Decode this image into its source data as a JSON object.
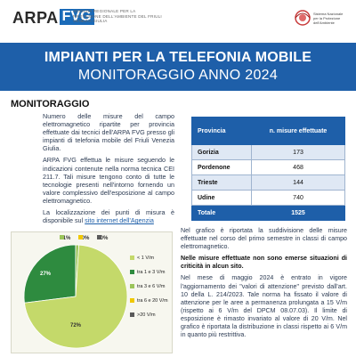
{
  "header": {
    "logo_arpa": "ARPA",
    "logo_fvg": "FVG",
    "logo_subtitle": "Agenzia regionale per la protezione dell'ambiente del Friuli Venezia Giulia",
    "partner_logo_text": "Sistema Nazionale per la Protezione dell'Ambiente"
  },
  "banner": {
    "title": "IMPIANTI PER LA TELEFONIA MOBILE",
    "subtitle": "MONITORAGGIO ANNO 2024"
  },
  "section": {
    "title": "MONITORAGGIO"
  },
  "intro": {
    "p1": "Numero delle misure del campo elettromagnetico ripartite per provincia effettuate dai tecnici dell'ARPA FVG presso gli impianti di telefonia mobile del Friuli Venezia Giulia.",
    "p2a": "ARPA FVG effettua le misure seguendo le indicazioni contenute nella norma tecnica CEI 211.7.",
    "p2b": "Tali misure tengono conto di tutte le tecnologie presenti nell'intorno fornendo un valore complessivo dell'esposizione al campo elettromagnetico.",
    "p3": "La localizzazione dei punti di misura è disponibile sul",
    "link": "sito internet dell'Agenzia"
  },
  "table": {
    "headers": [
      "Provincia",
      "n. misure effettuate"
    ],
    "rows": [
      {
        "provincia": "Gorizia",
        "misure": "173"
      },
      {
        "provincia": "Pordenone",
        "misure": "468"
      },
      {
        "provincia": "Trieste",
        "misure": "144"
      },
      {
        "provincia": "Udine",
        "misure": "740"
      }
    ],
    "total_label": "Totale",
    "total_value": "1525"
  },
  "chart_data": {
    "type": "pie",
    "categories": [
      "< 1 V/m",
      "tra 1 e 3 V/m",
      "tra 3 e 6 V/m",
      "tra 6 e 20 V/m",
      ">20 V/m"
    ],
    "values": [
      72,
      27,
      1,
      0,
      0
    ],
    "labels": [
      "72%",
      "27%",
      "1%",
      "0%",
      "0%"
    ],
    "colors": [
      "#c4d96a",
      "#2e8b3f",
      "#9bc45a",
      "#f0c800",
      "#5a5a5a"
    ],
    "legend_position": "right"
  },
  "right_text": {
    "p1": "Nel grafico è riportata la suddivisione delle misure effettuate nel corso del primo semestre in classi di campo elettromagnetico.",
    "p2": "Nelle misure effettuate non sono emerse situazioni di criticità in alcun sito.",
    "p3": "Nel mese di maggio 2024 è entrato in vigore l'aggiornamento dei \"valori di attenzione\" previsto dall'art. 10 della L. 214/2023. Tale norma ha fissato il valore di attenzione per le aree a permanenza prolungata a 15 V/m (rispetto ai 6 V/m del DPCM 08.07.03). Il limite di esposizione è rimasto invariato al valore di 20 V/m. Nel grafico è riportata la distribuzione in classi rispetto ai 6 V/m in quanto più restrittiva."
  }
}
